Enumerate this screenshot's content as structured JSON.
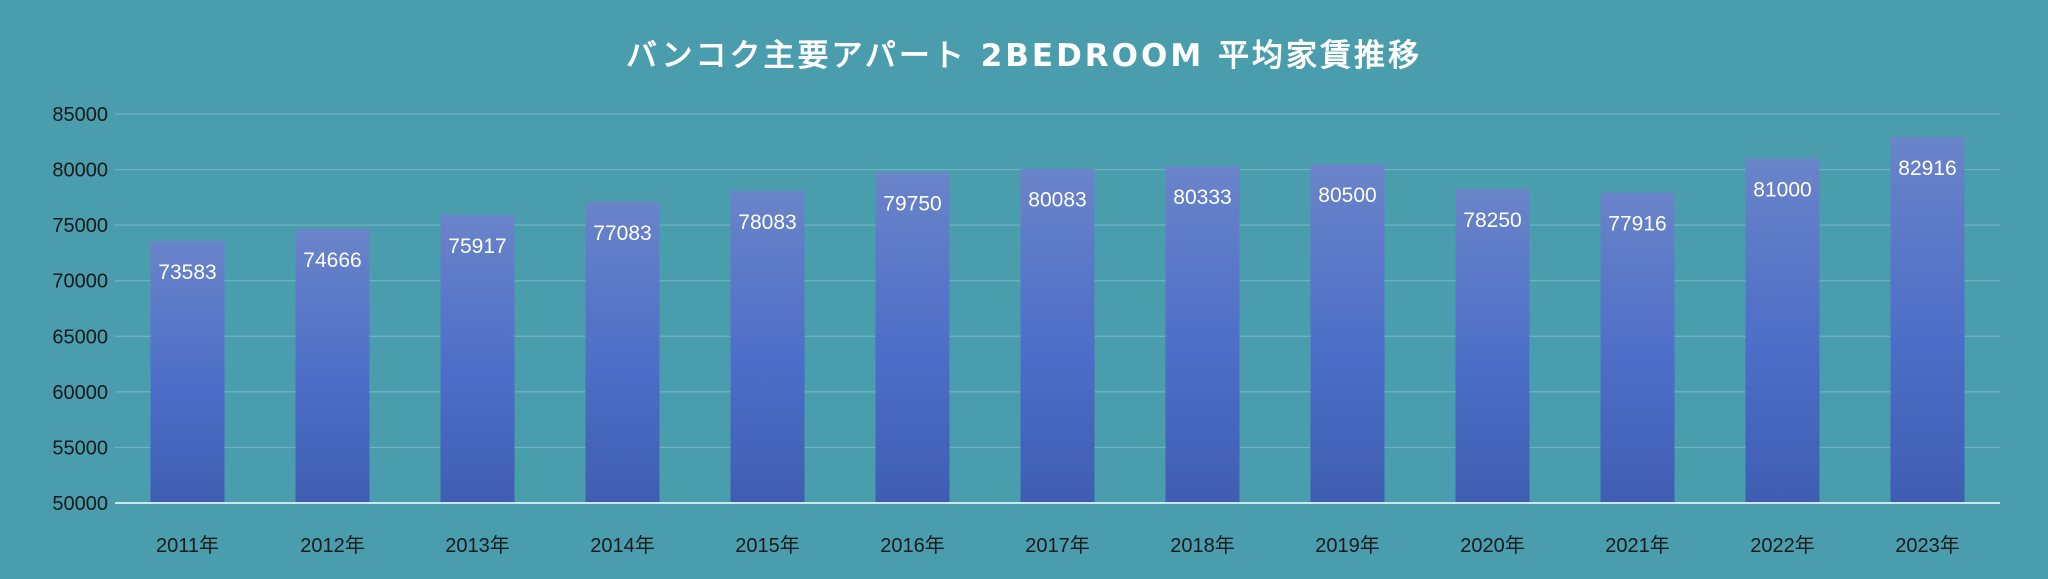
{
  "chart_data": {
    "type": "bar",
    "title": "バンコク主要アパート 2BEDROOM 平均家賃推移",
    "categories": [
      "2011年",
      "2012年",
      "2013年",
      "2014年",
      "2015年",
      "2016年",
      "2017年",
      "2018年",
      "2019年",
      "2020年",
      "2021年",
      "2022年",
      "2023年"
    ],
    "values": [
      73583,
      74666,
      75917,
      77083,
      78083,
      79750,
      80083,
      80333,
      80500,
      78250,
      77916,
      81000,
      82916
    ],
    "data_labels": [
      "73583",
      "74666",
      "75917",
      "77083",
      "78083",
      "79750",
      "80083",
      "80333",
      "80500",
      "78250",
      "77916",
      "81000",
      "82916"
    ],
    "y_ticks": [
      "50000",
      "55000",
      "60000",
      "65000",
      "70000",
      "75000",
      "80000",
      "85000"
    ],
    "ylim": [
      50000,
      85000
    ],
    "xlabel": "",
    "ylabel": "",
    "grid": true,
    "legend": "none",
    "colors": {
      "background": "#4a9dad",
      "bar_top": "#6a84c9",
      "bar_mid": "#4d6ec8",
      "bar_bottom": "#3f5eb2",
      "grid": "#6fb3c1",
      "axis": "#cfe6ec",
      "text": "#ffffff",
      "tick_text": "#1a1a1a"
    }
  }
}
